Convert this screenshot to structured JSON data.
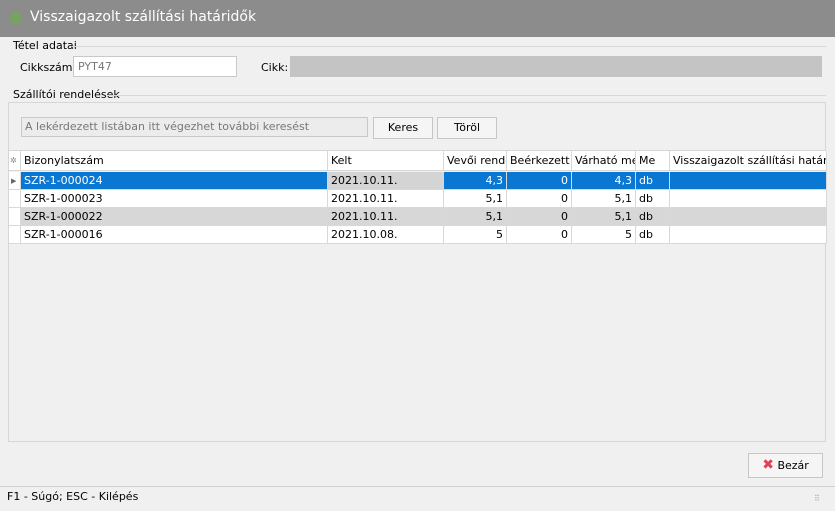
{
  "window": {
    "title": "Visszaigazolt szállítási határidők"
  },
  "item_group": {
    "label": "Tétel adatai",
    "cikkszam_label": "Cikkszám:",
    "cikkszam_value": "PYT47",
    "cikk_label": "Cikk:",
    "cikk_value": ""
  },
  "orders_group": {
    "label": "Szállítói rendelések",
    "search_placeholder": "A lekérdezett listában itt végezhet további keresést",
    "search_button": "Keres",
    "clear_button": "Töröl"
  },
  "grid": {
    "columns": [
      "Bizonylatszám",
      "Kelt",
      "Vevői rende",
      "Beérkezett r",
      "Várható mer",
      "Me",
      "Visszaigazolt szállítási határidő"
    ],
    "rows": [
      {
        "bizonylat": "SZR-1-000024",
        "kelt": "2021.10.11.",
        "vevoi": "4,3",
        "beerkezett": "0",
        "varhato": "4,3",
        "me": "db",
        "hatarido": "",
        "selected": true
      },
      {
        "bizonylat": "SZR-1-000023",
        "kelt": "2021.10.11.",
        "vevoi": "5,1",
        "beerkezett": "0",
        "varhato": "5,1",
        "me": "db",
        "hatarido": ""
      },
      {
        "bizonylat": "SZR-1-000022",
        "kelt": "2021.10.11.",
        "vevoi": "5,1",
        "beerkezett": "0",
        "varhato": "5,1",
        "me": "db",
        "hatarido": ""
      },
      {
        "bizonylat": "SZR-1-000016",
        "kelt": "2021.10.08.",
        "vevoi": "5",
        "beerkezett": "0",
        "varhato": "5",
        "me": "db",
        "hatarido": ""
      }
    ]
  },
  "footer": {
    "close_button": "Bezár",
    "status": "F1 - Súgó; ESC - Kilépés"
  },
  "colors": {
    "titlebar": "#8c8c8c",
    "selection": "#0a78d2",
    "close_icon": "#e0405a"
  }
}
